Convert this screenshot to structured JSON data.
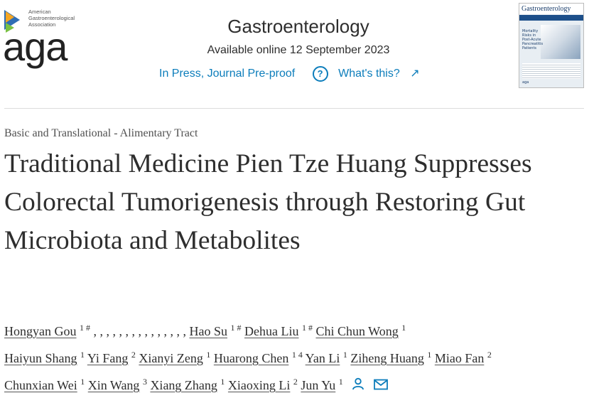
{
  "logo": {
    "small_text": [
      "American",
      "Gastroenterological",
      "Association"
    ],
    "word": "aga"
  },
  "header": {
    "journal": "Gastroenterology",
    "available": "Available online 12 September 2023",
    "status": "In Press, Journal Pre-proof",
    "whats_this": "What's this?"
  },
  "cover": {
    "title": "Gastroenterology",
    "text": "Mortality Risks in Post-Acute Pancreatitis Patients",
    "footer": "aga"
  },
  "article": {
    "section": "Basic and Translational - Alimentary Tract",
    "title": "Traditional Medicine Pien Tze Huang Suppresses Colorectal Tumorigenesis through Restoring Gut Microbiota and Metabolites"
  },
  "authors": {
    "line1": [
      {
        "name": "Hongyan Gou",
        "sup": "1 #"
      },
      {
        "sep": ", , , , , , , , , , , , , , ,"
      },
      {
        "name": "Hao Su",
        "sup": "1 #"
      },
      {
        "name": "Dehua Liu",
        "sup": "1 #"
      },
      {
        "name": "Chi Chun Wong",
        "sup": "1"
      }
    ],
    "line2": [
      {
        "name": "Haiyun Shang",
        "sup": "1"
      },
      {
        "name": "Yi Fang",
        "sup": "2"
      },
      {
        "name": "Xianyi Zeng",
        "sup": "1"
      },
      {
        "name": "Huarong Chen",
        "sup": "1 4"
      },
      {
        "name": "Yan Li",
        "sup": "1"
      },
      {
        "name": "Ziheng Huang",
        "sup": "1"
      },
      {
        "name": "Miao Fan",
        "sup": "2"
      }
    ],
    "line3": [
      {
        "name": "Chunxian Wei",
        "sup": "1"
      },
      {
        "name": "Xin Wang",
        "sup": "3"
      },
      {
        "name": "Xiang Zhang",
        "sup": "1"
      },
      {
        "name": "Xiaoxing Li",
        "sup": "2"
      },
      {
        "name": "Jun Yu",
        "sup": "1"
      }
    ],
    "icons": [
      "person-icon",
      "envelope-icon"
    ]
  },
  "colors": {
    "link": "#0c7dbb",
    "text": "#2e2e2e"
  }
}
